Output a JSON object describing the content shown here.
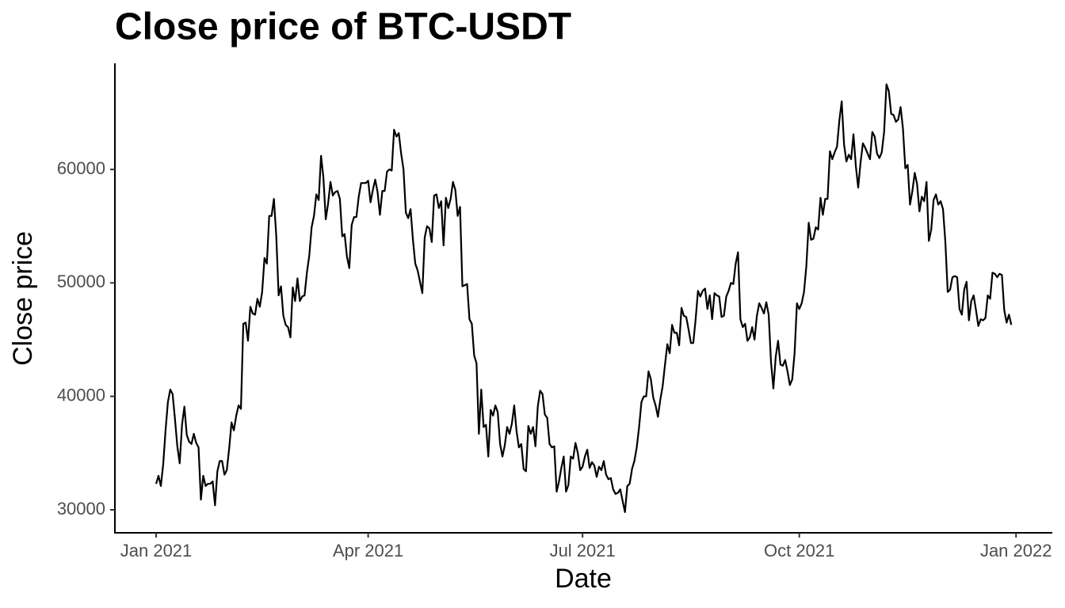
{
  "chart_data": {
    "type": "line",
    "title": "Close price of BTC-USDT",
    "x_label": "Date",
    "y_label": "Close price",
    "xlim": [
      -17.5,
      380.4
    ],
    "ylim": [
      27977,
      69350
    ],
    "xticks": [
      {
        "value": 0,
        "label": "Jan 2021"
      },
      {
        "value": 90,
        "label": "Apr 2021"
      },
      {
        "value": 181,
        "label": "Jul 2021"
      },
      {
        "value": 273,
        "label": "Oct 2021"
      },
      {
        "value": 365,
        "label": "Jan 2022"
      }
    ],
    "yticks": [
      30000,
      40000,
      50000,
      60000
    ],
    "grid": false,
    "series": [
      {
        "name": "Close",
        "color": "#000000",
        "x": [
          0,
          1,
          2,
          3,
          4,
          5,
          6,
          7,
          8,
          9,
          10,
          11,
          12,
          13,
          14,
          15,
          16,
          17,
          18,
          19,
          20,
          21,
          22,
          23,
          24,
          25,
          26,
          27,
          28,
          29,
          30,
          31,
          32,
          33,
          34,
          35,
          36,
          37,
          38,
          39,
          40,
          41,
          42,
          43,
          44,
          45,
          46,
          47,
          48,
          49,
          50,
          51,
          52,
          53,
          54,
          55,
          56,
          57,
          58,
          59,
          60,
          61,
          62,
          63,
          64,
          65,
          66,
          67,
          68,
          69,
          70,
          71,
          72,
          73,
          74,
          75,
          76,
          77,
          78,
          79,
          80,
          81,
          82,
          83,
          84,
          85,
          86,
          87,
          88,
          89,
          90,
          91,
          92,
          93,
          94,
          95,
          96,
          97,
          98,
          99,
          100,
          101,
          102,
          103,
          104,
          105,
          106,
          107,
          108,
          109,
          110,
          111,
          112,
          113,
          114,
          115,
          116,
          117,
          118,
          119,
          120,
          121,
          122,
          123,
          124,
          125,
          126,
          127,
          128,
          129,
          130,
          131,
          132,
          133,
          134,
          135,
          136,
          137,
          138,
          139,
          140,
          141,
          142,
          143,
          144,
          145,
          146,
          147,
          148,
          149,
          150,
          151,
          152,
          153,
          154,
          155,
          156,
          157,
          158,
          159,
          160,
          161,
          162,
          163,
          164,
          165,
          166,
          167,
          168,
          169,
          170,
          171,
          172,
          173,
          174,
          175,
          176,
          177,
          178,
          179,
          180,
          181,
          182,
          183,
          184,
          185,
          186,
          187,
          188,
          189,
          190,
          191,
          192,
          193,
          194,
          195,
          196,
          197,
          198,
          199,
          200,
          201,
          202,
          203,
          204,
          205,
          206,
          207,
          208,
          209,
          210,
          211,
          212,
          213,
          214,
          215,
          216,
          217,
          218,
          219,
          220,
          221,
          222,
          223,
          224,
          225,
          226,
          227,
          228,
          229,
          230,
          231,
          232,
          233,
          234,
          235,
          236,
          237,
          238,
          239,
          240,
          241,
          242,
          243,
          244,
          245,
          246,
          247,
          248,
          249,
          250,
          251,
          252,
          253,
          254,
          255,
          256,
          257,
          258,
          259,
          260,
          261,
          262,
          263,
          264,
          265,
          266,
          267,
          268,
          269,
          270,
          271,
          272,
          273,
          274,
          275,
          276,
          277,
          278,
          279,
          280,
          281,
          282,
          283,
          284,
          285,
          286,
          287,
          288,
          289,
          290,
          291,
          292,
          293,
          294,
          295,
          296,
          297,
          298,
          299,
          300,
          301,
          302,
          303,
          304,
          305,
          306,
          307,
          308,
          309,
          310,
          311,
          312,
          313,
          314,
          315,
          316,
          317,
          318,
          319,
          320,
          321,
          322,
          323,
          324,
          325,
          326,
          327,
          328,
          329,
          330,
          331,
          332,
          333,
          334,
          335,
          336,
          337,
          338,
          339,
          340,
          341,
          342,
          343,
          344,
          345,
          346,
          347,
          348,
          349,
          350,
          351,
          352,
          353,
          354,
          355,
          356,
          357,
          358,
          359,
          360,
          361,
          362,
          363
        ],
        "values": [
          32300,
          33000,
          32100,
          34000,
          37000,
          39500,
          40600,
          40200,
          38000,
          35600,
          34100,
          37500,
          39100,
          36600,
          36000,
          35800,
          36700,
          35900,
          35500,
          30900,
          33000,
          32100,
          32300,
          32300,
          32500,
          30400,
          33400,
          34300,
          34300,
          33100,
          33500,
          35400,
          37700,
          37000,
          38300,
          39200,
          38900,
          46400,
          46500,
          44900,
          47900,
          47300,
          47200,
          48600,
          47900,
          49200,
          52200,
          51700,
          55900,
          55900,
          57400,
          54100,
          48900,
          49700,
          47100,
          46300,
          46100,
          45200,
          49600,
          48400,
          50400,
          48400,
          48800,
          48900,
          50900,
          52400,
          54900,
          55900,
          57800,
          57300,
          61200,
          59300,
          55600,
          57000,
          58900,
          57700,
          58000,
          58100,
          57400,
          54100,
          54300,
          52300,
          51300,
          55100,
          55800,
          55800,
          57600,
          58800,
          58800,
          58800,
          59000,
          57100,
          58200,
          59100,
          58000,
          56000,
          58100,
          58100,
          59800,
          60000,
          59900,
          63500,
          62900,
          63200,
          61400,
          60000,
          56200,
          55700,
          56500,
          53800,
          51700,
          51100,
          50100,
          49100,
          54000,
          55000,
          54800,
          53600,
          57700,
          57800,
          56600,
          57200,
          53300,
          57500,
          56600,
          57400,
          58900,
          58200,
          55900,
          56700,
          49700,
          49800,
          49900,
          46800,
          46400,
          43600,
          42900,
          36700,
          40600,
          37300,
          37500,
          34700,
          38800,
          38300,
          39200,
          38600,
          35800,
          34700,
          35700,
          37300,
          36700,
          37600,
          39200,
          36900,
          35500,
          35800,
          33600,
          33400,
          37400,
          36700,
          37300,
          35600,
          39100,
          40500,
          40200,
          38400,
          38100,
          35800,
          35500,
          35600,
          31600,
          32500,
          33700,
          34700,
          31600,
          32200,
          34700,
          34500,
          35900,
          35000,
          33500,
          33800,
          34700,
          35300,
          33700,
          34200,
          33900,
          32900,
          33800,
          33500,
          34300,
          33100,
          32700,
          32800,
          31800,
          31400,
          31500,
          31800,
          30800,
          29800,
          32100,
          32300,
          33600,
          34300,
          35500,
          37300,
          39500,
          40000,
          40000,
          42200,
          41500,
          39900,
          39200,
          38200,
          39700,
          40900,
          42800,
          44600,
          43800,
          46300,
          45600,
          45600,
          44500,
          47800,
          47100,
          47000,
          45900,
          44700,
          44700,
          46800,
          49300,
          48800,
          49300,
          49500,
          47700,
          48900,
          46800,
          49100,
          48900,
          48800,
          47000,
          47100,
          48800,
          49300,
          50000,
          49900,
          51700,
          52700,
          46800,
          46100,
          46400,
          44900,
          45200,
          46100,
          45000,
          47100,
          48200,
          47800,
          47300,
          48300,
          47200,
          43000,
          40700,
          43500,
          44900,
          42800,
          42700,
          43200,
          42200,
          41000,
          41500,
          43800,
          48200,
          47700,
          48200,
          49200,
          51500,
          55300,
          53800,
          53900,
          54900,
          54700,
          57500,
          56000,
          57400,
          57400,
          61600,
          60900,
          61500,
          62000,
          64300,
          66000,
          62200,
          60700,
          61300,
          60900,
          63100,
          60300,
          58400,
          60600,
          62300,
          61900,
          61400,
          60900,
          63300,
          62900,
          61400,
          61000,
          61500,
          63300,
          67500,
          66900,
          64900,
          64800,
          64200,
          64400,
          65500,
          63600,
          60100,
          60400,
          56900,
          58100,
          59700,
          58700,
          56300,
          57600,
          57200,
          58900,
          53700,
          54700,
          57300,
          57800,
          56900,
          57200,
          56500,
          53600,
          49200,
          49400,
          50500,
          50600,
          50500,
          47700,
          47200,
          49400,
          50100,
          46700,
          48400,
          48900,
          47600,
          46200,
          46800,
          46700,
          46900,
          48900,
          48600,
          50900,
          50800,
          50500,
          50800,
          50700,
          47600,
          46500,
          47200,
          46300
        ]
      }
    ]
  }
}
